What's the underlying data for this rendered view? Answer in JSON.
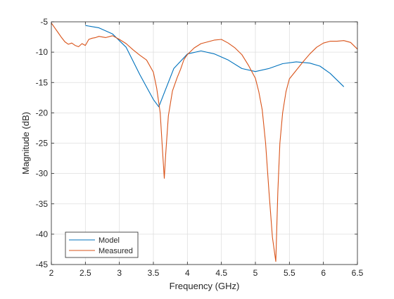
{
  "chart_data": {
    "type": "line",
    "title": "",
    "xlabel": "Frequency (GHz)",
    "ylabel": "Magnitude (dB)",
    "xlim": [
      2,
      6.5
    ],
    "ylim": [
      -45,
      -5
    ],
    "xticks": [
      2,
      2.5,
      3,
      3.5,
      4,
      4.5,
      5,
      5.5,
      6,
      6.5
    ],
    "xtick_labels": [
      "2",
      "2.5",
      "3",
      "3.5",
      "4",
      "4.5",
      "5",
      "5.5",
      "6",
      "6.5"
    ],
    "yticks": [
      -45,
      -40,
      -35,
      -30,
      -25,
      -20,
      -15,
      -10,
      -5
    ],
    "ytick_labels": [
      "-45",
      "-40",
      "-35",
      "-30",
      "-25",
      "-20",
      "-15",
      "-10",
      "-5"
    ],
    "grid": true,
    "legend_position": "bottom-left",
    "series": [
      {
        "name": "Model",
        "color": "#0072BD",
        "x": [
          2.5,
          2.7,
          2.9,
          3.1,
          3.3,
          3.5,
          3.58,
          3.8,
          4.0,
          4.2,
          4.4,
          4.6,
          4.8,
          5.0,
          5.2,
          5.4,
          5.6,
          5.8,
          5.95,
          6.1,
          6.3
        ],
        "y": [
          -5.6,
          -6.0,
          -7.0,
          -9.2,
          -13.7,
          -17.8,
          -19.0,
          -12.7,
          -10.3,
          -9.8,
          -10.3,
          -11.3,
          -12.7,
          -13.2,
          -12.7,
          -11.9,
          -11.6,
          -11.8,
          -12.3,
          -13.5,
          -15.7
        ]
      },
      {
        "name": "Measured",
        "color": "#D95319",
        "x": [
          2.0,
          2.05,
          2.1,
          2.15,
          2.2,
          2.25,
          2.3,
          2.35,
          2.4,
          2.45,
          2.5,
          2.55,
          2.6,
          2.65,
          2.7,
          2.8,
          2.9,
          3.0,
          3.1,
          3.2,
          3.3,
          3.4,
          3.5,
          3.55,
          3.6,
          3.63,
          3.66,
          3.68,
          3.72,
          3.78,
          3.85,
          3.9,
          3.95,
          4.0,
          4.1,
          4.2,
          4.3,
          4.4,
          4.5,
          4.6,
          4.7,
          4.8,
          4.9,
          5.0,
          5.05,
          5.1,
          5.15,
          5.2,
          5.25,
          5.3,
          5.33,
          5.36,
          5.4,
          5.45,
          5.5,
          5.6,
          5.7,
          5.8,
          5.9,
          6.0,
          6.1,
          6.2,
          6.3,
          6.4,
          6.5
        ],
        "y": [
          -5.2,
          -6.0,
          -6.8,
          -7.6,
          -8.3,
          -8.7,
          -8.5,
          -8.9,
          -9.1,
          -8.6,
          -8.9,
          -7.9,
          -7.7,
          -7.6,
          -7.4,
          -7.6,
          -7.3,
          -7.9,
          -8.6,
          -9.6,
          -10.5,
          -11.3,
          -13.3,
          -16.0,
          -20.0,
          -25.5,
          -30.8,
          -27.0,
          -20.5,
          -16.4,
          -14.2,
          -12.8,
          -11.2,
          -10.4,
          -9.3,
          -8.6,
          -8.3,
          -8.0,
          -7.9,
          -8.5,
          -9.3,
          -10.4,
          -12.2,
          -14.3,
          -16.5,
          -19.5,
          -25.0,
          -33.0,
          -40.5,
          -44.5,
          -33.0,
          -25.0,
          -20.0,
          -16.5,
          -14.4,
          -13.0,
          -11.6,
          -10.3,
          -9.2,
          -8.5,
          -8.2,
          -8.2,
          -8.1,
          -8.4,
          -9.5
        ]
      }
    ]
  }
}
